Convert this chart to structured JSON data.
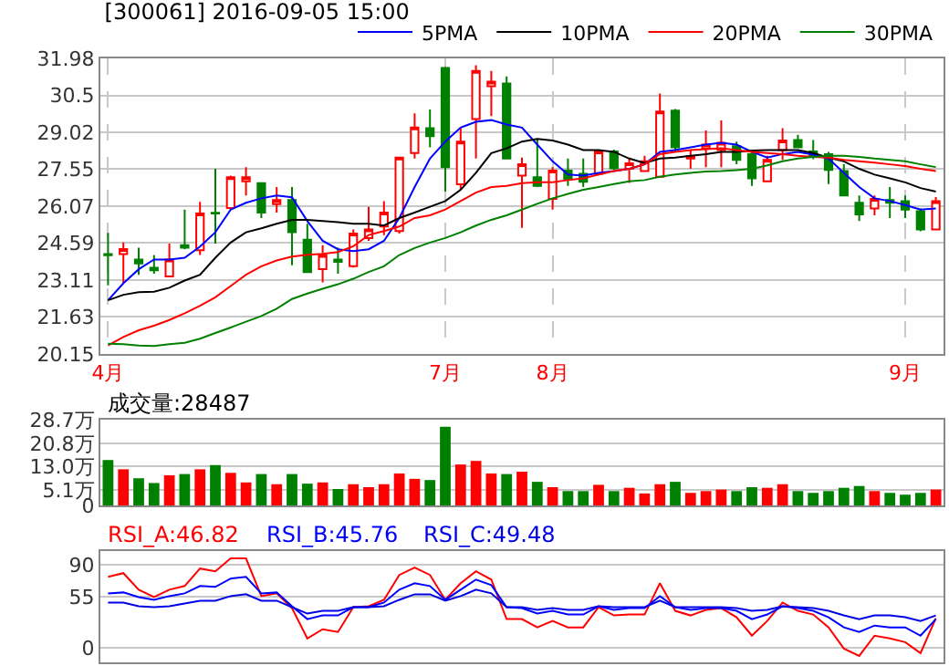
{
  "chart_data": [
    {
      "type": "candlestick",
      "title": "[300061] 2016-09-05 15:00",
      "categories": [
        "4月",
        null,
        null,
        null,
        null,
        null,
        null,
        null,
        null,
        null,
        null,
        null,
        null,
        null,
        null,
        null,
        null,
        null,
        null,
        null,
        null,
        null,
        "7月",
        null,
        null,
        null,
        null,
        null,
        null,
        "8月",
        null,
        null,
        null,
        null,
        null,
        null,
        null,
        null,
        null,
        null,
        null,
        null,
        null,
        null,
        null,
        null,
        null,
        null,
        null,
        null,
        null,
        null,
        "9月",
        null,
        null
      ],
      "ohlc": [
        [
          24.15,
          25.0,
          22.9,
          24.1
        ],
        [
          24.15,
          24.61,
          22.98,
          24.35
        ],
        [
          23.93,
          24.4,
          23.32,
          23.77
        ],
        [
          23.6,
          24.11,
          23.36,
          23.5
        ],
        [
          23.25,
          24.57,
          23.25,
          23.93
        ],
        [
          24.5,
          25.93,
          24.34,
          24.4
        ],
        [
          24.3,
          26.24,
          24.11,
          25.77
        ],
        [
          25.8,
          27.56,
          24.57,
          25.77
        ],
        [
          25.99,
          27.29,
          25.93,
          27.22
        ],
        [
          27.06,
          27.63,
          26.49,
          27.22
        ],
        [
          26.99,
          27.0,
          25.59,
          25.81
        ],
        [
          26.15,
          26.83,
          25.81,
          26.31
        ],
        [
          26.31,
          26.83,
          23.7,
          25.02
        ],
        [
          24.72,
          25.36,
          23.43,
          23.43
        ],
        [
          23.55,
          24.5,
          23.02,
          24.11
        ],
        [
          23.93,
          24.4,
          23.36,
          23.84
        ],
        [
          23.66,
          25.13,
          23.61,
          24.97
        ],
        [
          24.79,
          26.04,
          24.68,
          25.13
        ],
        [
          25.25,
          26.27,
          24.91,
          25.81
        ],
        [
          25.07,
          28.01,
          24.97,
          28.01
        ],
        [
          28.19,
          29.78,
          27.97,
          29.21
        ],
        [
          29.19,
          29.94,
          28.42,
          28.87
        ],
        [
          31.6,
          31.64,
          26.65,
          27.63
        ],
        [
          26.94,
          29.21,
          26.72,
          28.65
        ],
        [
          29.55,
          31.71,
          27.97,
          31.48
        ],
        [
          30.87,
          31.48,
          29.67,
          31.05
        ],
        [
          30.98,
          31.26,
          27.97,
          27.97
        ],
        [
          27.29,
          28.01,
          25.2,
          27.74
        ],
        [
          27.22,
          28.76,
          26.83,
          26.88
        ],
        [
          26.36,
          27.63,
          25.93,
          27.49
        ],
        [
          27.49,
          27.97,
          26.88,
          27.13
        ],
        [
          27.36,
          27.97,
          26.83,
          27.04
        ],
        [
          27.36,
          28.33,
          27.3,
          28.26
        ],
        [
          28.26,
          28.33,
          27.52,
          27.58
        ],
        [
          27.56,
          28.01,
          27.0,
          27.78
        ],
        [
          27.47,
          28.08,
          27.47,
          27.86
        ],
        [
          27.24,
          30.57,
          27.24,
          29.85
        ],
        [
          29.89,
          29.95,
          28.24,
          28.42
        ],
        [
          27.97,
          28.31,
          27.56,
          28.06
        ],
        [
          28.37,
          29.1,
          27.63,
          28.53
        ],
        [
          28.31,
          29.5,
          27.63,
          28.6
        ],
        [
          28.47,
          28.65,
          27.74,
          27.92
        ],
        [
          28.15,
          28.31,
          26.88,
          27.18
        ],
        [
          27.06,
          28.08,
          27.02,
          27.92
        ],
        [
          28.31,
          29.19,
          27.92,
          28.69
        ],
        [
          28.71,
          28.92,
          28.42,
          28.42
        ],
        [
          28.26,
          28.71,
          27.95,
          28.1
        ],
        [
          28.15,
          28.24,
          26.95,
          27.52
        ],
        [
          27.47,
          27.74,
          26.49,
          26.49
        ],
        [
          26.2,
          26.49,
          25.47,
          25.74
        ],
        [
          25.97,
          26.49,
          25.7,
          26.36
        ],
        [
          26.31,
          26.83,
          25.59,
          26.2
        ],
        [
          26.27,
          26.49,
          25.59,
          25.93
        ],
        [
          25.86,
          25.97,
          25.06,
          25.13
        ],
        [
          25.13,
          26.43,
          25.13,
          26.27
        ]
      ],
      "series": [
        {
          "type": "line",
          "name": "5PMA",
          "color": "#0000ff",
          "values": [
            22.3,
            22.98,
            23.54,
            23.93,
            23.93,
            24.0,
            24.45,
            25.02,
            25.93,
            26.2,
            26.38,
            26.49,
            26.42,
            25.47,
            24.68,
            24.34,
            24.27,
            24.34,
            24.68,
            25.59,
            26.83,
            27.97,
            28.65,
            29.21,
            29.44,
            29.51,
            29.33,
            29.21,
            28.53,
            27.86,
            27.33,
            27.29,
            27.4,
            27.47,
            27.56,
            27.74,
            28.24,
            28.31,
            28.42,
            28.53,
            28.6,
            28.53,
            28.24,
            28.01,
            28.15,
            28.24,
            28.13,
            27.97,
            27.4,
            26.83,
            26.38,
            26.27,
            26.11,
            25.93,
            25.97
          ]
        },
        {
          "type": "line",
          "name": "10PMA",
          "color": "#000000",
          "values": [
            22.3,
            22.52,
            22.62,
            22.64,
            22.8,
            23.09,
            23.32,
            24.0,
            24.61,
            25.02,
            25.18,
            25.36,
            25.52,
            25.52,
            25.47,
            25.43,
            25.36,
            25.36,
            25.29,
            25.59,
            25.81,
            26.04,
            26.27,
            26.72,
            27.4,
            28.19,
            28.38,
            28.65,
            28.76,
            28.69,
            28.53,
            28.31,
            28.31,
            28.24,
            27.97,
            27.79,
            27.97,
            28.01,
            28.08,
            28.15,
            28.24,
            28.24,
            28.29,
            28.31,
            28.31,
            28.31,
            28.19,
            28.01,
            27.86,
            27.56,
            27.33,
            27.18,
            27.02,
            26.79,
            26.65
          ]
        },
        {
          "type": "line",
          "name": "20PMA",
          "color": "#ff0000",
          "values": [
            20.49,
            20.83,
            21.1,
            21.28,
            21.51,
            21.78,
            22.08,
            22.42,
            22.87,
            23.32,
            23.66,
            23.89,
            24.05,
            24.12,
            24.16,
            24.23,
            24.46,
            24.91,
            25.07,
            25.25,
            25.59,
            25.7,
            25.93,
            26.27,
            26.61,
            26.83,
            26.88,
            26.99,
            27.02,
            27.02,
            27.11,
            27.18,
            27.33,
            27.47,
            27.56,
            27.74,
            28.15,
            28.24,
            28.31,
            28.35,
            28.38,
            28.31,
            28.24,
            28.19,
            28.15,
            28.08,
            28.04,
            28.01,
            27.92,
            27.86,
            27.81,
            27.74,
            27.67,
            27.56,
            27.47
          ]
        },
        {
          "type": "line",
          "name": "30PMA",
          "color": "#008000",
          "values": [
            20.56,
            20.54,
            20.49,
            20.47,
            20.54,
            20.6,
            20.76,
            20.99,
            21.21,
            21.44,
            21.67,
            21.96,
            22.35,
            22.57,
            22.76,
            22.94,
            23.16,
            23.43,
            23.66,
            24.11,
            24.39,
            24.61,
            24.79,
            25.02,
            25.29,
            25.52,
            25.7,
            25.93,
            26.16,
            26.38,
            26.56,
            26.72,
            26.83,
            26.95,
            27.06,
            27.11,
            27.24,
            27.33,
            27.4,
            27.45,
            27.47,
            27.51,
            27.56,
            27.7,
            27.86,
            27.97,
            28.04,
            28.08,
            28.08,
            28.04,
            27.97,
            27.92,
            27.86,
            27.74,
            27.63
          ]
        }
      ],
      "ylim": [
        20.15,
        31.98
      ],
      "yticks": [
        20.15,
        21.63,
        23.11,
        24.59,
        26.07,
        27.55,
        29.02,
        30.5,
        31.98
      ],
      "grid": true,
      "legend": "top right"
    },
    {
      "type": "bar",
      "annotations": [
        "成交量:28487"
      ],
      "categories": [
        null,
        null,
        null,
        null,
        null,
        null,
        null,
        null,
        null,
        null,
        null,
        null,
        null,
        null,
        null,
        null,
        null,
        null,
        null,
        null,
        null,
        null,
        null,
        null,
        null,
        null,
        null,
        null,
        null,
        null,
        null,
        null,
        null,
        null,
        null,
        null,
        null,
        null,
        null,
        null,
        null,
        null,
        null,
        null,
        null,
        null,
        null,
        null,
        null,
        null,
        null,
        null,
        null,
        null,
        null
      ],
      "values": [
        15.2,
        12.1,
        9.1,
        7.5,
        10.1,
        10.5,
        12.1,
        13.5,
        10.9,
        7.7,
        10.5,
        7.1,
        10.5,
        7.3,
        7.7,
        5.5,
        7.1,
        6.1,
        7.1,
        10.7,
        8.9,
        8.5,
        26.3,
        13.7,
        14.9,
        10.7,
        10.5,
        11.3,
        7.9,
        6.1,
        4.8,
        4.8,
        6.9,
        4.8,
        5.9,
        4.0,
        7.1,
        7.9,
        4.2,
        4.8,
        5.3,
        4.8,
        6.1,
        5.9,
        7.1,
        4.8,
        4.2,
        4.8,
        5.9,
        6.5,
        4.8,
        4.2,
        3.6,
        4.2,
        5.3
      ],
      "colors": [
        "#008000",
        "#ff0000",
        "#008000",
        "#008000",
        "#ff0000",
        "#008000",
        "#ff0000",
        "#008000",
        "#ff0000",
        "#ff0000",
        "#008000",
        "#ff0000",
        "#008000",
        "#008000",
        "#ff0000",
        "#008000",
        "#ff0000",
        "#ff0000",
        "#ff0000",
        "#ff0000",
        "#ff0000",
        "#008000",
        "#008000",
        "#ff0000",
        "#ff0000",
        "#ff0000",
        "#008000",
        "#ff0000",
        "#008000",
        "#ff0000",
        "#008000",
        "#008000",
        "#ff0000",
        "#008000",
        "#ff0000",
        "#ff0000",
        "#ff0000",
        "#008000",
        "#ff0000",
        "#ff0000",
        "#ff0000",
        "#008000",
        "#008000",
        "#ff0000",
        "#ff0000",
        "#008000",
        "#008000",
        "#008000",
        "#008000",
        "#008000",
        "#ff0000",
        "#008000",
        "#008000",
        "#008000",
        "#ff0000"
      ],
      "ylim": [
        0,
        28.7
      ],
      "yticks": [
        0,
        {
          "value": 5.1,
          "label": "5.1万"
        },
        {
          "value": 13.0,
          "label": "13.0万"
        },
        {
          "value": 20.8,
          "label": "20.8万"
        },
        {
          "value": 28.7,
          "label": "28.7万"
        }
      ],
      "grid": true,
      "tick_labels": "y"
    },
    {
      "type": "line",
      "categories": [
        null,
        null,
        null,
        null,
        null,
        null,
        null,
        null,
        null,
        null,
        null,
        null,
        null,
        null,
        null,
        null,
        null,
        null,
        null,
        null,
        null,
        null,
        null,
        null,
        null,
        null,
        null,
        null,
        null,
        null,
        null,
        null,
        null,
        null,
        null,
        null,
        null,
        null,
        null,
        null,
        null,
        null,
        null,
        null,
        null,
        null,
        null,
        null,
        null,
        null,
        null,
        null,
        null,
        null,
        null
      ],
      "series": [
        {
          "name": "RSI_A:46.82",
          "color": "#ff0000",
          "values": [
            77,
            81,
            63,
            55,
            63,
            67,
            86,
            83,
            97,
            97,
            56,
            59,
            43,
            10,
            20,
            17,
            44,
            45,
            52,
            79,
            87,
            79,
            52,
            70,
            83,
            74,
            31,
            31,
            22,
            29,
            22,
            22,
            44,
            35,
            36,
            36,
            70,
            40,
            35,
            41,
            43,
            33,
            13,
            29,
            49,
            40,
            36,
            22,
            -1,
            -9,
            13,
            10,
            6,
            -6,
            32
          ]
        },
        {
          "name": "RSI_B:45.76",
          "color": "#0000ff",
          "values": [
            59,
            60,
            55,
            52,
            56,
            59,
            67,
            66,
            75,
            77,
            59,
            60,
            45,
            31,
            35,
            35,
            44,
            44,
            49,
            63,
            70,
            67,
            52,
            63,
            74,
            68,
            44,
            43,
            37,
            40,
            36,
            36,
            45,
            41,
            43,
            43,
            56,
            44,
            41,
            43,
            43,
            40,
            31,
            36,
            45,
            43,
            40,
            33,
            22,
            17,
            24,
            22,
            22,
            13,
            31
          ]
        },
        {
          "name": "RSI_C:49.48",
          "color": "#0000e6",
          "values": [
            49,
            49,
            45,
            44,
            45,
            48,
            51,
            51,
            56,
            58,
            51,
            51,
            44,
            37,
            40,
            40,
            44,
            44,
            45,
            52,
            58,
            58,
            51,
            56,
            63,
            59,
            44,
            44,
            41,
            43,
            41,
            41,
            45,
            44,
            44,
            44,
            51,
            44,
            44,
            44,
            44,
            43,
            40,
            41,
            45,
            44,
            43,
            40,
            35,
            31,
            35,
            35,
            33,
            29,
            35
          ]
        }
      ],
      "ylim": [
        -16,
        105
      ],
      "yticks": [
        0,
        55,
        90
      ],
      "grid": true,
      "tick_labels": "y",
      "legend": "top left"
    }
  ]
}
